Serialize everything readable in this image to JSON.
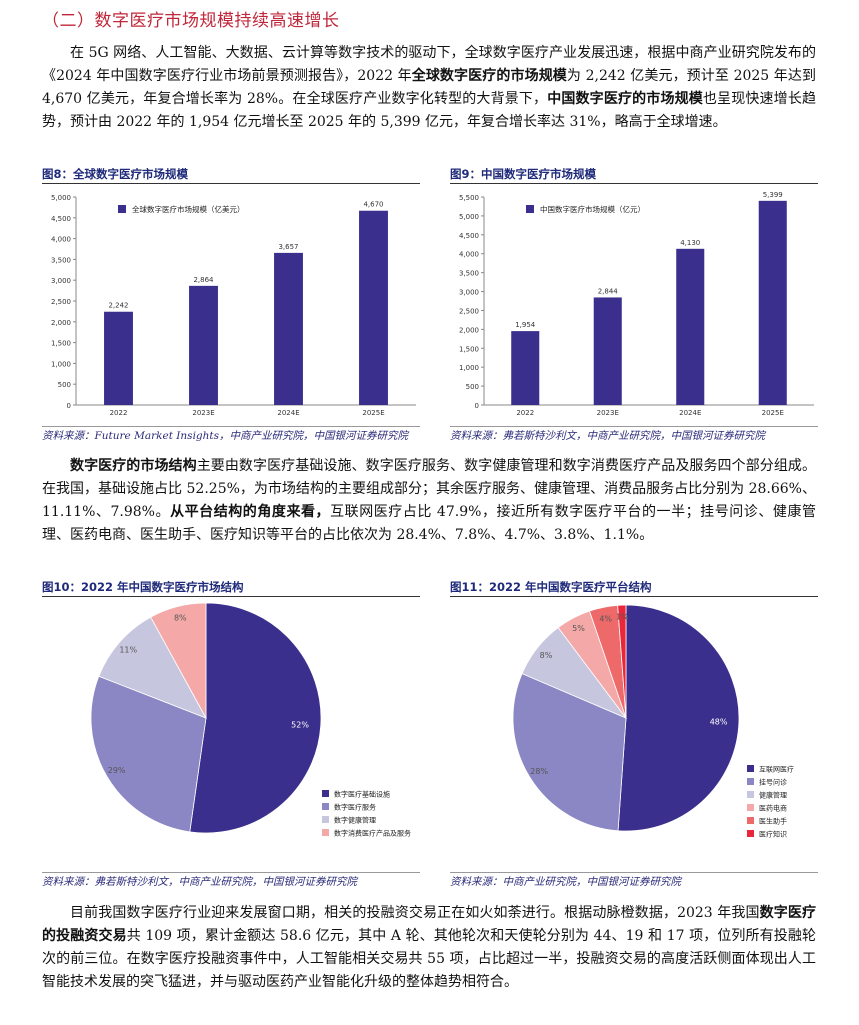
{
  "section_title": "（二）数字医疗市场规模持续高速增长",
  "para1": [
    {
      "t": "在 5G 网络、人工智能、大数据、云计算等数字技术的驱动下，全球数字医疗产业发展迅速，根据中商产业研究院发布的《2024 年中国数字医疗行业市场前景预测报告》，2022 年",
      "b": false
    },
    {
      "t": "全球数字医疗的市场规模",
      "b": true
    },
    {
      "t": "为 2,242 亿美元，预计至 2025 年达到 4,670 亿美元，年复合增长率为 28%。在全球医疗产业数字化转型的大背景下，",
      "b": false
    },
    {
      "t": "中国数字医疗的市场规模",
      "b": true
    },
    {
      "t": "也呈现快速增长趋势，预计由 2022 年的 1,954 亿元增长至 2025 年的 5,399 亿元，年复合增长率达 31%，略高于全球增速。",
      "b": false
    }
  ],
  "para2": [
    {
      "t": "数字医疗的市场结构",
      "b": true
    },
    {
      "t": "主要由数字医疗基础设施、数字医疗服务、数字健康管理和数字消费医疗产品及服务四个部分组成。在我国，基础设施占比 52.25%，为市场结构的主要组成部分；其余医疗服务、健康管理、消费品服务占比分别为 28.66%、11.11%、7.98%。",
      "b": false
    },
    {
      "t": "从平台结构的角度来看，",
      "b": true
    },
    {
      "t": "互联网医疗占比 47.9%，接近所有数字医疗平台的一半；挂号问诊、健康管理、医药电商、医生助手、医疗知识等平台的占比依次为 28.4%、7.8%、4.7%、3.8%、1.1%。",
      "b": false
    }
  ],
  "para3": [
    {
      "t": "目前我国数字医疗行业迎来发展窗口期，相关的投融资交易正在如火如荼进行。根据动脉橙数据，2023 年我国",
      "b": false
    },
    {
      "t": "数字医疗的投融资交易",
      "b": true
    },
    {
      "t": "共 109 项，累计金额达 58.6 亿元，其中 A 轮、其他轮次和天使轮分别为 44、19 和 17 项，位列所有投融轮次的前三位。在数字医疗投融资事件中，人工智能相关交易共 55 项，占比超过一半，投融资交易的高度活跃侧面体现出人工智能技术发展的突飞猛进，并与驱动医药产业智能化升级的整体趋势相符合。",
      "b": false
    }
  ],
  "colors": {
    "bar": "#3a2f8c",
    "title_red": "#c0263a",
    "fig_title": "#1f2a7a",
    "pie10": [
      "#3a2f8c",
      "#8b86c4",
      "#c7c6df",
      "#f4a9a8"
    ],
    "pie11": [
      "#3a2f8c",
      "#8b86c4",
      "#c7c6df",
      "#f4a9a8",
      "#ee6a6a",
      "#e8283a"
    ]
  },
  "figures": [
    {
      "id": "fig8",
      "title": "图8：全球数字医疗市场规模",
      "source": "资料来源：Future Market Insights，中商产业研究院，中国银河证券研究院",
      "chart_data": {
        "type": "bar",
        "categories": [
          "2022",
          "2023E",
          "2024E",
          "2025E"
        ],
        "series": [
          {
            "name": "全球数字医疗市场规模（亿美元）",
            "values": [
              2242,
              2864,
              3657,
              4670
            ]
          }
        ],
        "value_labels": [
          "2,242",
          "2,864",
          "3,657",
          "4,670"
        ],
        "yticks": [
          "0",
          "500",
          "1,000",
          "1,500",
          "2,000",
          "2,500",
          "3,000",
          "3,500",
          "4,000",
          "4,500",
          "5,000"
        ],
        "ylim": [
          0,
          5000
        ],
        "legend": "top-left"
      }
    },
    {
      "id": "fig9",
      "title": "图9：中国数字医疗市场规模",
      "source": "资料来源：弗若斯特沙利文，中商产业研究院，中国银河证券研究院",
      "chart_data": {
        "type": "bar",
        "categories": [
          "2022",
          "2023E",
          "2024E",
          "2025E"
        ],
        "series": [
          {
            "name": "中国数字医疗市场规模（亿元）",
            "values": [
              1954,
              2844,
              4130,
              5399
            ]
          }
        ],
        "value_labels": [
          "1,954",
          "2,844",
          "4,130",
          "5,399"
        ],
        "yticks": [
          "0",
          "500",
          "1,000",
          "1,500",
          "2,000",
          "2,500",
          "3,000",
          "3,500",
          "4,000",
          "4,500",
          "5,000",
          "5,500"
        ],
        "ylim": [
          0,
          5500
        ],
        "legend": "top-left"
      }
    },
    {
      "id": "fig10",
      "title": "图10：2022 年中国数字医疗市场结构",
      "source": "资料来源：弗若斯特沙利文，中商产业研究院，中国银河证券研究院",
      "chart_data": {
        "type": "pie",
        "labels": [
          "数字医疗基础设施",
          "数字医疗服务",
          "数字健康管理",
          "数字消费医疗产品及服务"
        ],
        "values": [
          52.25,
          28.66,
          11.11,
          7.98
        ],
        "pct_labels": [
          "52%",
          "29%",
          "11%",
          "8%"
        ],
        "legend": "bottom-right"
      }
    },
    {
      "id": "fig11",
      "title": "图11：2022 年中国数字医疗平台结构",
      "source": "资料来源：中商产业研究院，中国银河证券研究院",
      "chart_data": {
        "type": "pie",
        "labels": [
          "互联网医疗",
          "挂号问诊",
          "健康管理",
          "医药电商",
          "医生助手",
          "医疗知识"
        ],
        "values": [
          47.9,
          28.4,
          7.8,
          4.7,
          3.8,
          1.1
        ],
        "pct_labels": [
          "48%",
          "28%",
          "8%",
          "5%",
          "4%",
          "1%"
        ],
        "legend": "bottom-right"
      }
    }
  ]
}
